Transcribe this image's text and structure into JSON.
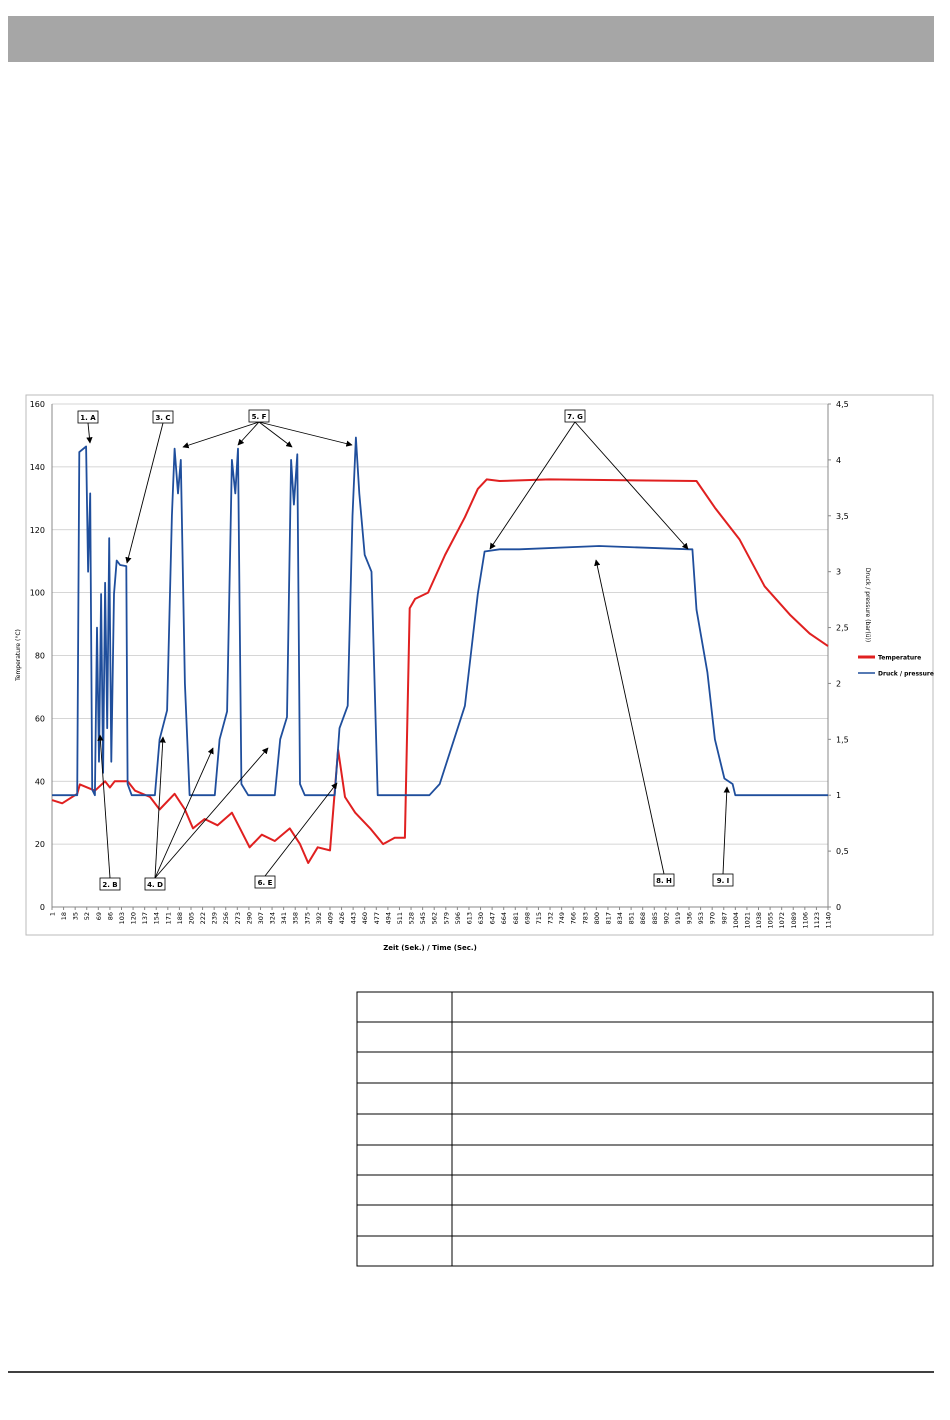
{
  "chart_data": {
    "type": "line",
    "xlabel": "Zeit (Sek.) / Time (Sec.)",
    "ylabel": "Temperature (°C)",
    "y2label": "Druck / pressure (bar(ü))",
    "xlim": [
      1,
      1140
    ],
    "xticks": [
      1,
      18,
      35,
      52,
      69,
      86,
      103,
      120,
      137,
      154,
      171,
      188,
      205,
      222,
      239,
      256,
      273,
      290,
      307,
      324,
      341,
      358,
      375,
      392,
      409,
      426,
      443,
      460,
      477,
      494,
      511,
      528,
      545,
      562,
      579,
      596,
      613,
      630,
      647,
      664,
      681,
      698,
      715,
      732,
      749,
      766,
      783,
      800,
      817,
      834,
      851,
      868,
      885,
      902,
      919,
      936,
      953,
      970,
      987,
      1004,
      1021,
      1038,
      1055,
      1072,
      1089,
      1106,
      1123,
      1140
    ],
    "ylim": [
      0,
      160
    ],
    "yticks": [
      0,
      20,
      40,
      60,
      80,
      100,
      120,
      140,
      160
    ],
    "y2lim": [
      0,
      4.5
    ],
    "y2ticks": [
      0,
      {
        "value": 0.5,
        "label": "0,5"
      },
      1,
      {
        "value": 1.5,
        "label": "1,5"
      },
      2,
      {
        "value": 2.5,
        "label": "2,5"
      },
      3,
      {
        "value": 3.5,
        "label": "3,5"
      },
      4,
      {
        "value": 4.5,
        "label": "4,5"
      }
    ],
    "grid": true,
    "legend": "right",
    "annotations": [
      "1. A",
      "2. B",
      "3. C",
      "4. D",
      "5. F",
      "6. E",
      "7. G",
      "8. H",
      "9. I"
    ],
    "series": [
      {
        "name": "Temperature",
        "color": "#e02020",
        "x": [
          1,
          16,
          38,
          42,
          64,
          79,
          86,
          93,
          112,
          123,
          145,
          159,
          181,
          196,
          208,
          225,
          244,
          265,
          277,
          291,
          309,
          328,
          350,
          365,
          377,
          391,
          409,
          421,
          431,
          446,
          468,
          487,
          504,
          519,
          526,
          534,
          553,
          578,
          607,
          626,
          639,
          658,
          731,
          947,
          974,
          1010,
          1047,
          1084,
          1113,
          1140
        ],
        "values": [
          34,
          33,
          36,
          39,
          37,
          40,
          38,
          40,
          40,
          37,
          35,
          31,
          36,
          31,
          25,
          28,
          26,
          30,
          25,
          19,
          23,
          21,
          25,
          20,
          14,
          19,
          18,
          50,
          35,
          30,
          25,
          20,
          22,
          22,
          95,
          98,
          100,
          112,
          124,
          133,
          136,
          135.5,
          136,
          135.5,
          127,
          117,
          102,
          93,
          87,
          83
        ]
      },
      {
        "name": "Druck / pressure",
        "color": "#1f4e9c",
        "axis": "y2",
        "x": [
          1,
          38,
          41,
          51,
          54,
          57,
          60,
          64,
          67,
          70,
          73,
          76,
          79,
          82,
          85,
          88,
          92,
          96,
          101,
          110,
          112,
          118,
          152,
          159,
          170,
          177,
          181,
          186,
          190,
          196,
          203,
          240,
          247,
          258,
          265,
          270,
          274,
          279,
          289,
          328,
          336,
          346,
          352,
          356,
          361,
          365,
          372,
          416,
          423,
          435,
          442,
          447,
          452,
          460,
          470,
          479,
          526,
          555,
          570,
          607,
          626,
          636,
          658,
          687,
          804,
          937,
          941,
          947,
          963,
          974,
          988,
          1000,
          1004,
          1140
        ],
        "values": [
          1,
          1,
          4.07,
          4.12,
          3.0,
          3.7,
          1.05,
          1,
          2.5,
          1.3,
          2.8,
          1.2,
          2.9,
          1.6,
          3.3,
          1.3,
          2.8,
          3.1,
          3.06,
          3.05,
          1.1,
          1,
          1,
          1.5,
          1.76,
          3.5,
          4.1,
          3.7,
          4.0,
          2.0,
          1,
          1,
          1.5,
          1.75,
          4.0,
          3.7,
          4.1,
          1.1,
          1,
          1,
          1.5,
          1.7,
          4.0,
          3.6,
          4.05,
          1.1,
          1,
          1,
          1.6,
          1.8,
          3.5,
          4.2,
          3.7,
          3.15,
          3.0,
          1,
          1,
          1,
          1.1,
          1.8,
          2.8,
          3.18,
          3.2,
          3.2,
          3.23,
          3.2,
          3.2,
          2.66,
          2.1,
          1.5,
          1.15,
          1.1,
          1,
          1
        ]
      }
    ]
  }
}
